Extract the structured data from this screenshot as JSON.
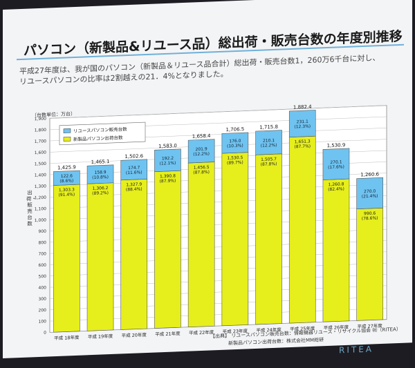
{
  "page": {
    "title": "パソコン（新製品&リユース品）総出荷・販売台数の年度別推移",
    "subtitle_line1": "平成27年度は、我が国のパソコン（新製品＆リユース品合計）総出荷・販売台数1，260万6千台に対し、",
    "subtitle_line2": "リユースパソコンの比率は2割越えの21．4%となりました。",
    "source_line1": "【出典】 リユースパソコン販売台数：情報機器リユース・リサイクル協会 ㈳（RITEA）",
    "source_line2": "新製品パソコン出荷台数：株式会社MM総研",
    "logo": "RITEA"
  },
  "chart_data": {
    "type": "bar",
    "stacked": true,
    "unit_label": "（台数単位：万台）",
    "ylabel": "出荷・販売台数",
    "ylim": [
      0,
      1900
    ],
    "y_ticks": [
      0,
      100,
      200,
      300,
      400,
      500,
      600,
      700,
      800,
      900,
      1000,
      1100,
      1200,
      1300,
      1400,
      1500,
      1600,
      1700,
      1800,
      1900
    ],
    "y_tick_labels": [
      "0",
      "100",
      "200",
      "300",
      "400",
      "500",
      "600",
      "700",
      "800",
      "900",
      "1,000",
      "1,100",
      "1,200",
      "1,300",
      "1,400",
      "1,500",
      "1,600",
      "1,700",
      "1,800",
      "1,900"
    ],
    "grid": true,
    "legend_position": "top-left",
    "categories": [
      "平成 18年度",
      "平成 19年度",
      "平成 20年度",
      "平成 21年度",
      "平成 22年度",
      "平成 23年度",
      "平成 24年度",
      "平成 25年度",
      "平成 26年度",
      "平成 27年度"
    ],
    "series": [
      {
        "name": "新製品パソコン出荷台数",
        "color": "#e6ef1c",
        "values": [
          1303.3,
          1306.2,
          1327.9,
          1390.8,
          1456.5,
          1530.5,
          1505.7,
          1651.3,
          1260.8,
          990.6
        ],
        "value_labels": [
          "1,303.3",
          "1,306.2",
          "1,327.9",
          "1,390.8",
          "1,456.5",
          "1,530.5",
          "1,505.7",
          "1,651.3",
          "1,260.8",
          "990.6"
        ],
        "pct_labels": [
          "(91.4%)",
          "(89.2%)",
          "(88.4%)",
          "(87.9%)",
          "(87.8%)",
          "(89.7%)",
          "(87.8%)",
          "(87.7%)",
          "(82.4%)",
          "(78.6%)"
        ]
      },
      {
        "name": "リユースパソコン販売台数",
        "color": "#6fc3f0",
        "values": [
          122.6,
          158.9,
          174.7,
          192.2,
          201.9,
          176.0,
          210.1,
          231.1,
          270.1,
          270.0
        ],
        "value_labels": [
          "122.6",
          "158.9",
          "174.7",
          "192.2",
          "201.9",
          "176.0",
          "210.1",
          "231.1",
          "270.1",
          "270.0"
        ],
        "pct_labels": [
          "(8.6%)",
          "(10.8%)",
          "(11.6%)",
          "(12.1%)",
          "(12.2%)",
          "(10.3%)",
          "(12.2%)",
          "(12.3%)",
          "(17.6%)",
          "(21.4%)"
        ]
      }
    ],
    "totals": [
      1425.9,
      1465.1,
      1502.6,
      1583.0,
      1658.4,
      1706.5,
      1715.8,
      1882.4,
      1530.9,
      1260.6
    ],
    "total_labels": [
      "1,425.9",
      "1,465.1",
      "1,502.6",
      "1,583.0",
      "1,658.4",
      "1,706.5",
      "1,715.8",
      "1,882.4",
      "1,530.9",
      "1,260.6"
    ]
  }
}
